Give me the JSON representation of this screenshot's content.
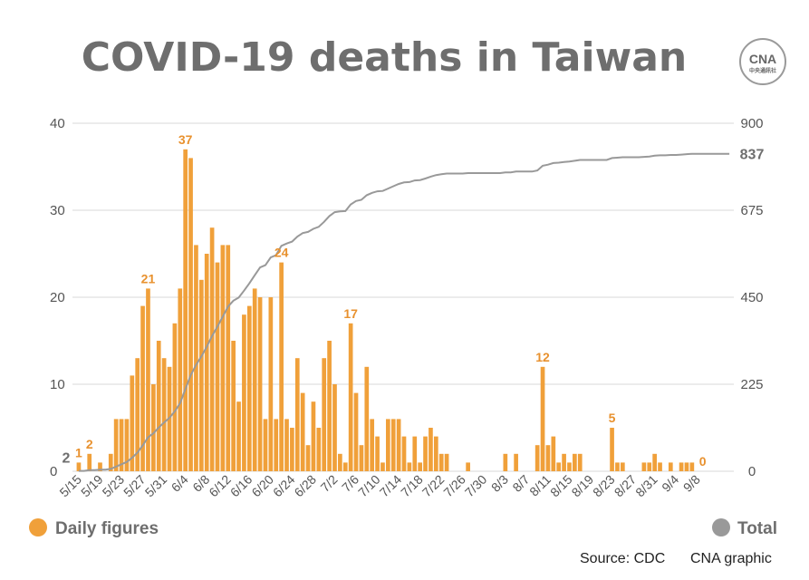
{
  "chart_data": {
    "type": "bar",
    "title": "COVID-19 deaths in Taiwan",
    "x_tick_labels": [
      "5/15",
      "5/19",
      "5/23",
      "5/27",
      "5/31",
      "6/4",
      "6/8",
      "6/12",
      "6/16",
      "6/20",
      "6/24",
      "6/28",
      "7/2",
      "7/6",
      "7/10",
      "7/14",
      "7/18",
      "7/22",
      "7/26",
      "7/30",
      "8/3",
      "8/7",
      "8/11",
      "8/15",
      "8/19",
      "8/23",
      "8/27",
      "8/31",
      "9/4",
      "9/8"
    ],
    "y_left_ticks": [
      "0",
      "10",
      "20",
      "30",
      "40"
    ],
    "y_right_ticks": [
      "0",
      "225",
      "450",
      "675",
      "900"
    ],
    "ylim_left": [
      0,
      40
    ],
    "ylim_right": [
      0,
      900
    ],
    "series": [
      {
        "name": "Daily figures",
        "type": "bar",
        "axis": "left",
        "color": "#f0a03a",
        "values": [
          1,
          0,
          2,
          0,
          1,
          0,
          2,
          6,
          6,
          6,
          11,
          13,
          19,
          21,
          10,
          15,
          13,
          12,
          17,
          21,
          37,
          36,
          26,
          22,
          25,
          28,
          24,
          26,
          26,
          15,
          8,
          18,
          19,
          21,
          20,
          6,
          20,
          6,
          24,
          6,
          5,
          13,
          9,
          3,
          8,
          5,
          13,
          15,
          10,
          2,
          1,
          17,
          9,
          3,
          12,
          6,
          4,
          1,
          6,
          6,
          6,
          4,
          1,
          4,
          1,
          4,
          5,
          4,
          2,
          2,
          0,
          0,
          0,
          1,
          0,
          0,
          0,
          0,
          0,
          0,
          2,
          0,
          2,
          0,
          0,
          0,
          3,
          12,
          3,
          4,
          1,
          2,
          1,
          2,
          2,
          0,
          0,
          0,
          0,
          0,
          5,
          1,
          1,
          0,
          0,
          0,
          1,
          1,
          2,
          1,
          0,
          1,
          0,
          1,
          1,
          1,
          0,
          0,
          0,
          0,
          0,
          0,
          0
        ]
      },
      {
        "name": "Total",
        "type": "line",
        "axis": "right",
        "color": "#999999"
      }
    ],
    "data_labels": [
      {
        "series": "Daily figures",
        "index": 0,
        "text": "1"
      },
      {
        "series": "Daily figures",
        "index": 2,
        "text": "2"
      },
      {
        "series": "Daily figures",
        "index": 13,
        "text": "21"
      },
      {
        "series": "Daily figures",
        "index": 20,
        "text": "37"
      },
      {
        "series": "Daily figures",
        "index": 38,
        "text": "24"
      },
      {
        "series": "Daily figures",
        "index": 51,
        "text": "17"
      },
      {
        "series": "Daily figures",
        "index": 87,
        "text": "12"
      },
      {
        "series": "Daily figures",
        "index": 100,
        "text": "5"
      },
      {
        "series": "Daily figures",
        "index": 117,
        "text": "0"
      },
      {
        "series": "Total",
        "index": 0,
        "text": "2"
      },
      {
        "series": "Total",
        "index": 117,
        "text": "837"
      }
    ],
    "grid": true,
    "legend_position": "bottom",
    "legend": [
      {
        "label": "Daily figures",
        "color": "#f0a03a"
      },
      {
        "label": "Total",
        "color": "#999999"
      }
    ]
  },
  "logo": {
    "text": "CNA",
    "subtext": "中央通訊社"
  },
  "footer": {
    "source": "Source: CDC",
    "credit": "CNA graphic"
  }
}
